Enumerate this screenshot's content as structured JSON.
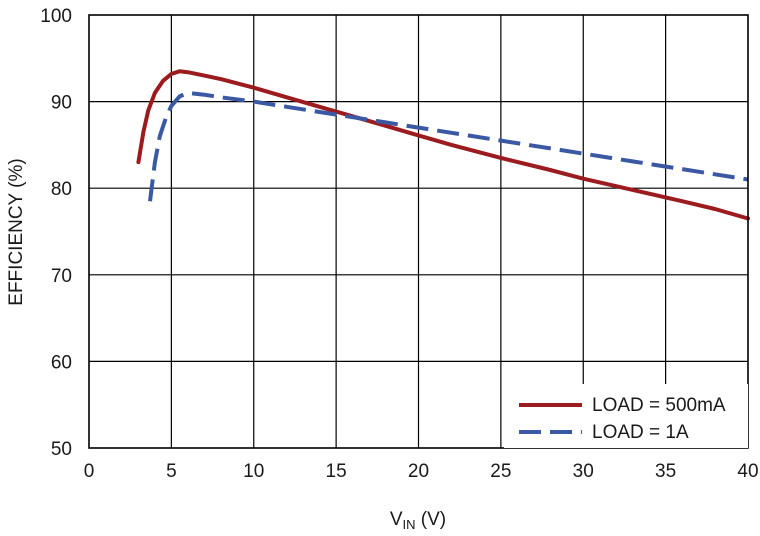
{
  "chart_data": {
    "type": "line",
    "title": "",
    "xlabel_main": "V",
    "xlabel_sub": "IN",
    "xlabel_unit": " (V)",
    "ylabel": "EFFICIENCY (%)",
    "xlim": [
      0,
      40
    ],
    "ylim": [
      50,
      100
    ],
    "xticks": [
      0,
      5,
      10,
      15,
      20,
      25,
      30,
      35,
      40
    ],
    "yticks": [
      50,
      60,
      70,
      80,
      90,
      100
    ],
    "grid": true,
    "legend_position": "bottom-right",
    "series": [
      {
        "name": "LOAD = 500mA",
        "color": "#9b1b1f",
        "dash": "solid",
        "x": [
          3.0,
          3.3,
          3.6,
          4.0,
          4.5,
          5.0,
          5.5,
          6.0,
          7.0,
          8.0,
          10.0,
          12.0,
          14.0,
          16.0,
          18.0,
          20.0,
          22.0,
          25.0,
          28.0,
          30.0,
          33.0,
          36.0,
          38.0,
          40.0
        ],
        "y": [
          83.0,
          86.5,
          89.0,
          91.0,
          92.4,
          93.2,
          93.5,
          93.4,
          93.0,
          92.6,
          91.6,
          90.5,
          89.4,
          88.3,
          87.2,
          86.1,
          85.0,
          83.5,
          82.1,
          81.1,
          79.8,
          78.5,
          77.6,
          76.5
        ]
      },
      {
        "name": "LOAD = 1A",
        "color": "#3a58a3",
        "dash": "dashed",
        "x": [
          3.7,
          4.0,
          4.3,
          4.7,
          5.0,
          5.5,
          6.0,
          7.0,
          8.0,
          10.0,
          12.0,
          14.0,
          16.0,
          18.0,
          20.0,
          22.0,
          25.0,
          28.0,
          30.0,
          33.0,
          36.0,
          38.0,
          40.0
        ],
        "y": [
          78.5,
          83.0,
          86.0,
          88.3,
          89.5,
          90.6,
          91.0,
          90.8,
          90.5,
          90.0,
          89.4,
          88.8,
          88.2,
          87.6,
          87.0,
          86.4,
          85.5,
          84.6,
          84.0,
          83.1,
          82.2,
          81.6,
          81.0
        ]
      }
    ]
  }
}
